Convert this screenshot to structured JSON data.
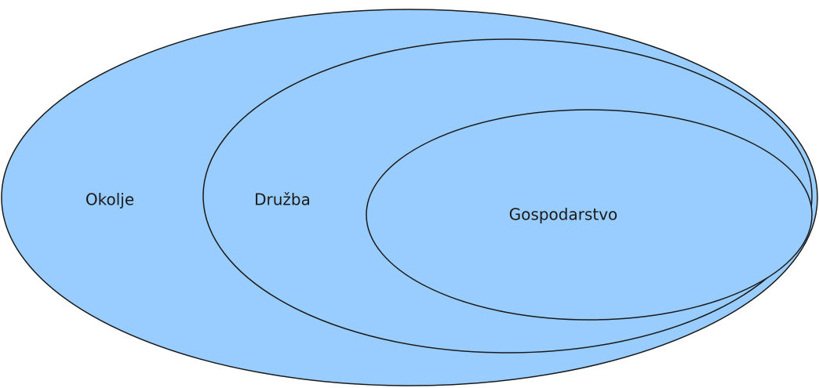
{
  "nodes": [
    {
      "label": "Okolje"
    },
    {
      "label": "Družba"
    },
    {
      "label": "Gospodarstvo"
    }
  ]
}
